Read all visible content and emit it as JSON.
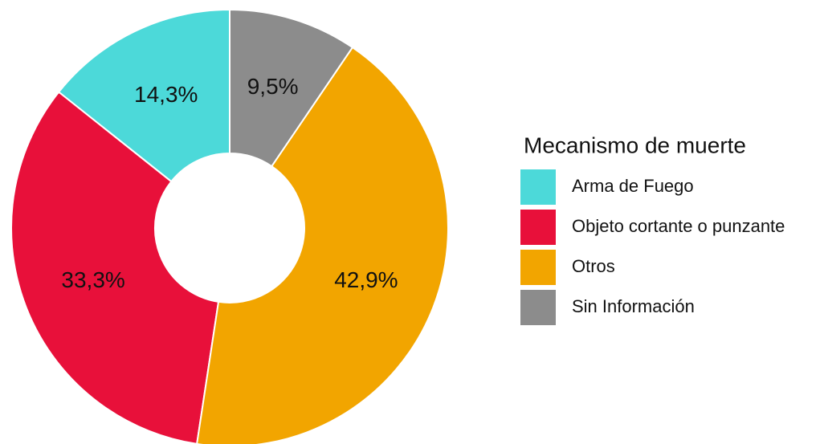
{
  "chart_data": {
    "type": "pie",
    "legend_title": "Mecanismo de muerte",
    "categories": [
      "Arma de Fuego",
      "Objeto cortante o punzante",
      "Otros",
      "Sin Información"
    ],
    "values": [
      14.3,
      33.3,
      42.9,
      9.5
    ],
    "value_labels": [
      "14,3%",
      "33,3%",
      "42,9%",
      "9,5%"
    ],
    "colors": [
      "#4cd9d9",
      "#e8103a",
      "#f2a500",
      "#8c8c8c"
    ],
    "legend": "right"
  }
}
